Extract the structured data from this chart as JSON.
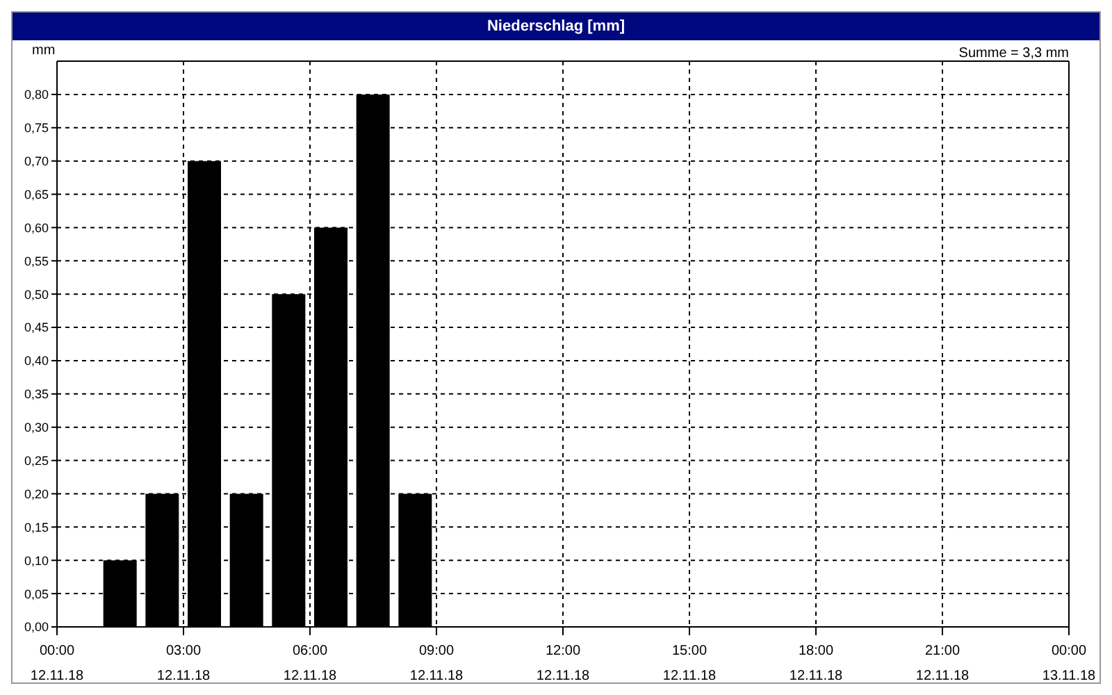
{
  "chart_data": {
    "type": "bar",
    "title": "Niederschlag [mm]",
    "ylabel": "mm",
    "annotations": [
      "Summe = 3,3 mm"
    ],
    "x": [
      "--11-12T01:30",
      "--11-12T02:30",
      "--11-12T03:30",
      "--11-12T04:30",
      "--11-12T05:30",
      "--11-12T06:30",
      "--11-12T07:30",
      "--11-12T08:30"
    ],
    "values": [
      0.1,
      0.2,
      0.7,
      0.2,
      0.5,
      0.6,
      0.8,
      0.2
    ],
    "color": "#000000",
    "xlim": [
      "--11-12T00:00",
      "--11-13T00:00"
    ],
    "xticks": [
      {
        "value": "--11-12T00:00",
        "label": "00:00\n12.11.18"
      },
      {
        "value": "--11-12T03:00",
        "label": "03:00\n12.11.18"
      },
      {
        "value": "--11-12T06:00",
        "label": "06:00\n12.11.18"
      },
      {
        "value": "--11-12T09:00",
        "label": "09:00\n12.11.18"
      },
      {
        "value": "--11-12T12:00",
        "label": "12:00\n12.11.18"
      },
      {
        "value": "--11-12T15:00",
        "label": "15:00\n12.11.18"
      },
      {
        "value": "--11-12T18:00",
        "label": "18:00\n12.11.18"
      },
      {
        "value": "--11-12T21:00",
        "label": "21:00\n12.11.18"
      },
      {
        "value": "--11-13T00:00",
        "label": "00:00\n13.11.18"
      }
    ],
    "ylim": [
      0,
      0.85
    ],
    "yticks": [
      {
        "value": 0,
        "label": "0,00"
      },
      {
        "value": 0.05,
        "label": "0,05"
      },
      {
        "value": 0.1,
        "label": "0,10"
      },
      {
        "value": 0.15,
        "label": "0,15"
      },
      {
        "value": 0.2,
        "label": "0,20"
      },
      {
        "value": 0.25,
        "label": "0,25"
      },
      {
        "value": 0.3,
        "label": "0,30"
      },
      {
        "value": 0.35,
        "label": "0,35"
      },
      {
        "value": 0.4,
        "label": "0,40"
      },
      {
        "value": 0.45,
        "label": "0,45"
      },
      {
        "value": 0.5,
        "label": "0,50"
      },
      {
        "value": 0.55,
        "label": "0,55"
      },
      {
        "value": 0.6,
        "label": "0,60"
      },
      {
        "value": 0.65,
        "label": "0,65"
      },
      {
        "value": 0.7,
        "label": "0,70"
      },
      {
        "value": 0.75,
        "label": "0,75"
      },
      {
        "value": 0.8,
        "label": "0,80"
      }
    ],
    "grid": true
  }
}
